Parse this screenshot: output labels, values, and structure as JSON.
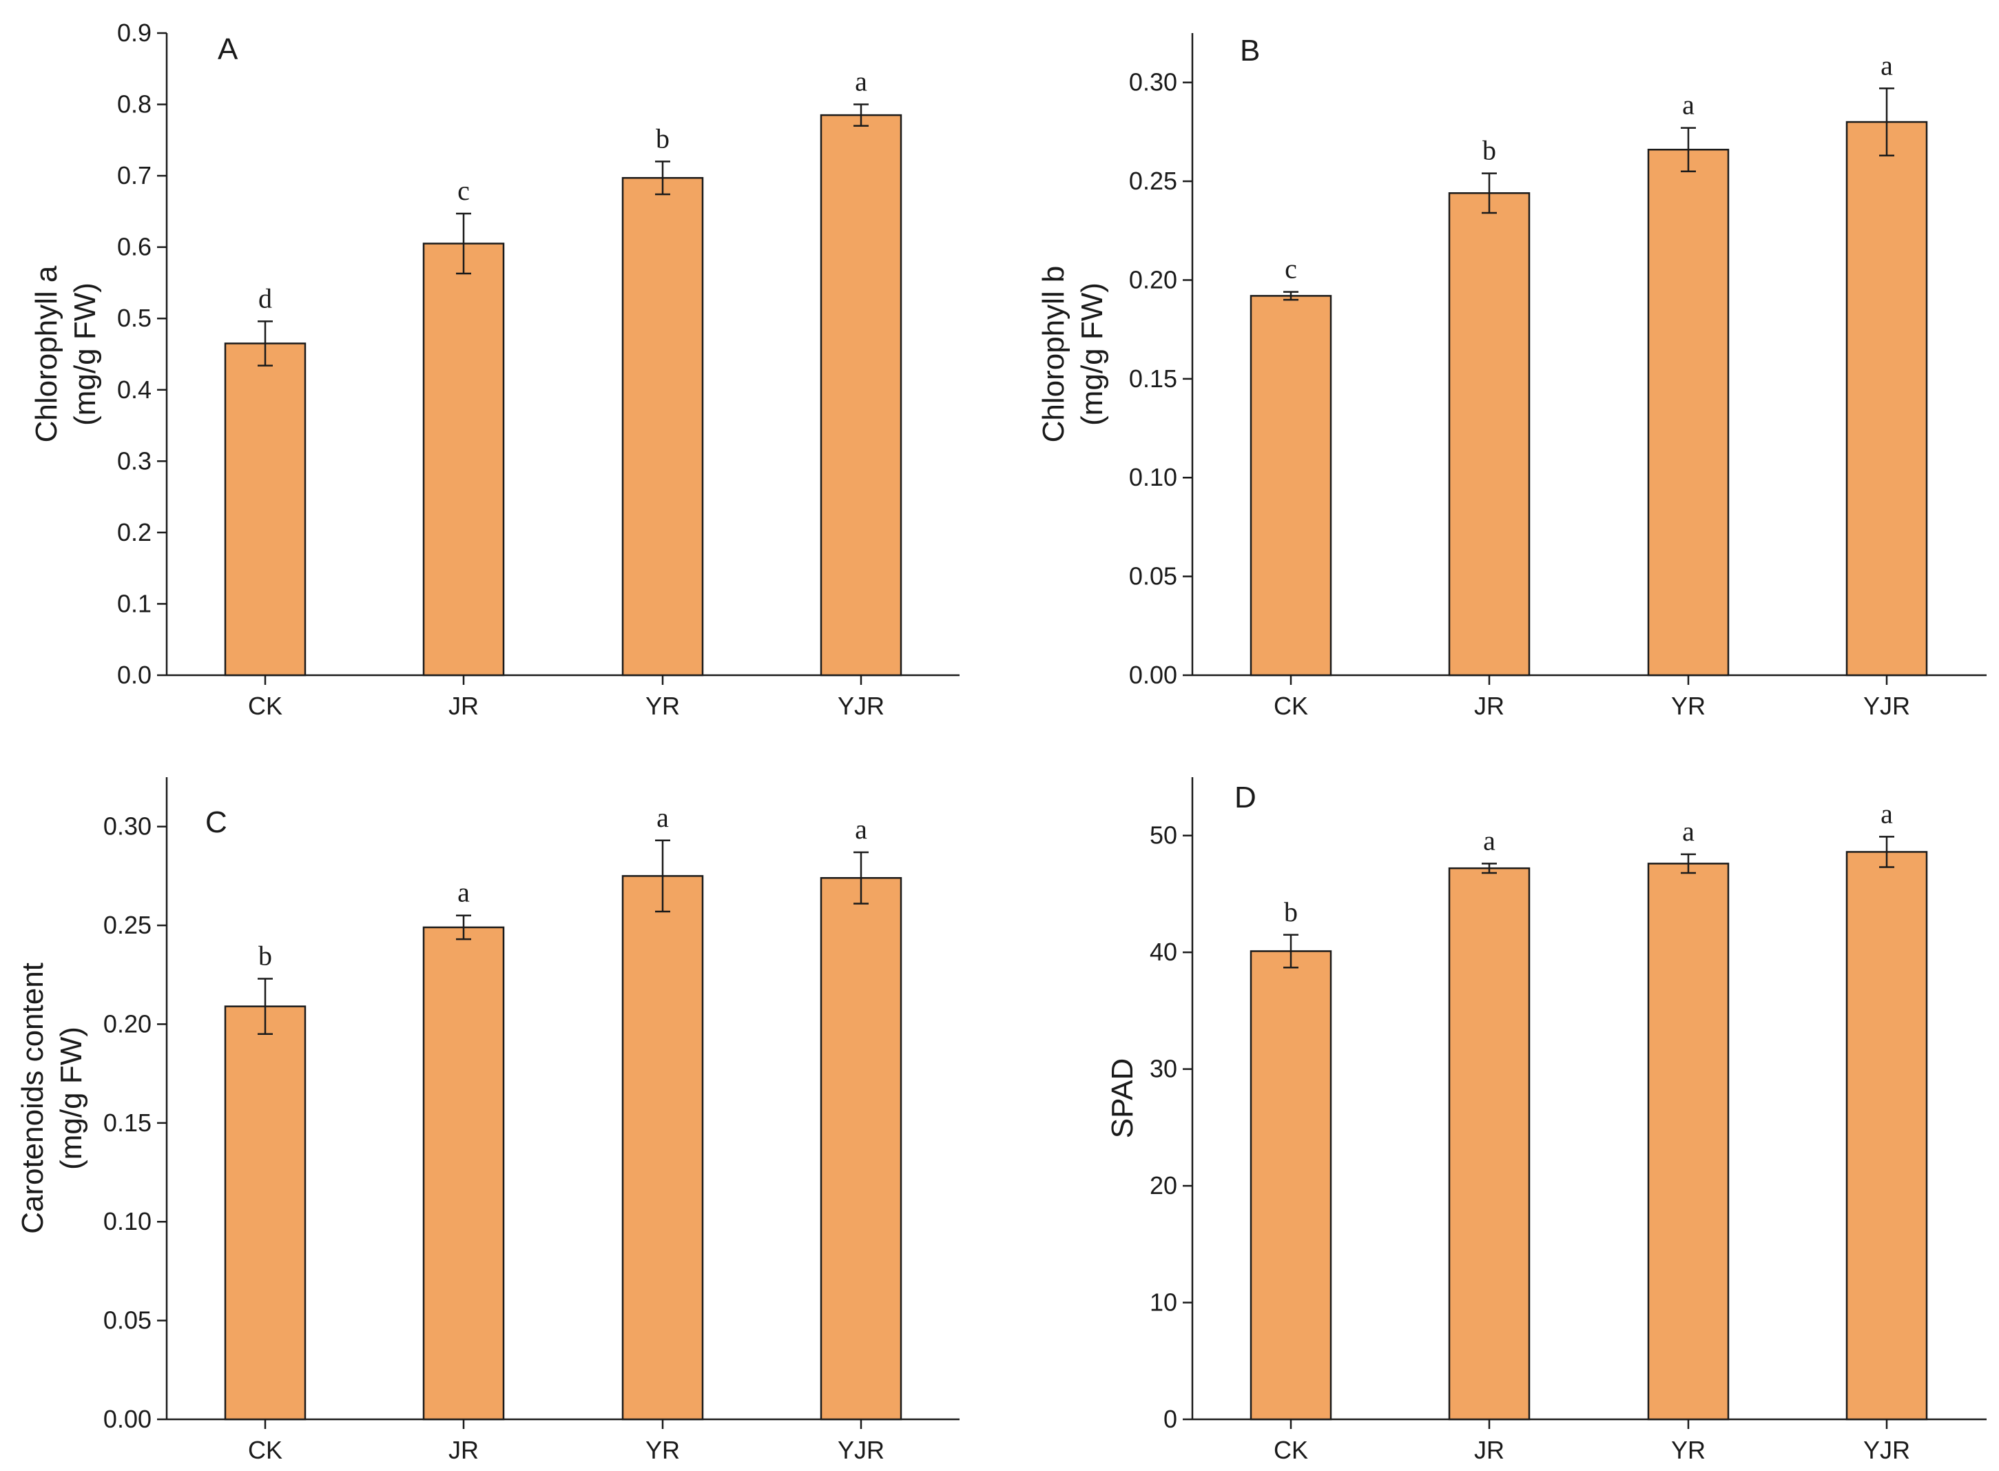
{
  "colors": {
    "bar_fill": "#F2A562",
    "axis": "#1a1a1a"
  },
  "chart_data": [
    {
      "panel": "A",
      "type": "bar",
      "categories": [
        "CK",
        "JR",
        "YR",
        "YJR"
      ],
      "values": [
        0.465,
        0.605,
        0.697,
        0.785
      ],
      "errors": [
        0.031,
        0.042,
        0.023,
        0.015
      ],
      "significance": [
        "d",
        "c",
        "b",
        "a"
      ],
      "ylabel_lines": [
        "Chlorophyll  a",
        "(mg/g FW)"
      ],
      "ylim": [
        0,
        0.9
      ],
      "yticks": [
        0.0,
        0.1,
        0.2,
        0.3,
        0.4,
        0.5,
        0.6,
        0.7,
        0.8,
        0.9
      ],
      "ytick_labels": [
        "0.0",
        "0.1",
        "0.2",
        "0.3",
        "0.4",
        "0.5",
        "0.6",
        "0.7",
        "0.8",
        "0.9"
      ]
    },
    {
      "panel": "B",
      "type": "bar",
      "categories": [
        "CK",
        "JR",
        "YR",
        "YJR"
      ],
      "values": [
        0.192,
        0.244,
        0.266,
        0.28
      ],
      "errors": [
        0.002,
        0.01,
        0.011,
        0.017
      ],
      "significance": [
        "c",
        "b",
        "a",
        "a"
      ],
      "ylabel_lines": [
        "Chlorophyll b",
        "(mg/g FW)"
      ],
      "ylim": [
        0,
        0.325
      ],
      "yticks": [
        0.0,
        0.05,
        0.1,
        0.15,
        0.2,
        0.25,
        0.3
      ],
      "ytick_labels": [
        "0.00",
        "0.05",
        "0.10",
        "0.15",
        "0.20",
        "0.25",
        "0.30"
      ]
    },
    {
      "panel": "C",
      "type": "bar",
      "categories": [
        "CK",
        "JR",
        "YR",
        "YJR"
      ],
      "values": [
        0.209,
        0.249,
        0.275,
        0.274
      ],
      "errors": [
        0.014,
        0.006,
        0.018,
        0.013
      ],
      "significance": [
        "b",
        "a",
        "a",
        "a"
      ],
      "ylabel_lines": [
        "Carotenoids content",
        "(mg/g FW)"
      ],
      "ylim": [
        0,
        0.325
      ],
      "yticks": [
        0.0,
        0.05,
        0.1,
        0.15,
        0.2,
        0.25,
        0.3
      ],
      "ytick_labels": [
        "0.00",
        "0.05",
        "0.10",
        "0.15",
        "0.20",
        "0.25",
        "0.30"
      ]
    },
    {
      "panel": "D",
      "type": "bar",
      "categories": [
        "CK",
        "JR",
        "YR",
        "YJR"
      ],
      "values": [
        40.1,
        47.2,
        47.6,
        48.6
      ],
      "errors": [
        1.4,
        0.4,
        0.8,
        1.3
      ],
      "significance": [
        "b",
        "a",
        "a",
        "a"
      ],
      "ylabel_lines": [
        "SPAD"
      ],
      "ylim": [
        0,
        55
      ],
      "yticks": [
        0,
        10,
        20,
        30,
        40,
        50
      ],
      "ytick_labels": [
        "0",
        "10",
        "20",
        "30",
        "40",
        "50"
      ]
    }
  ]
}
